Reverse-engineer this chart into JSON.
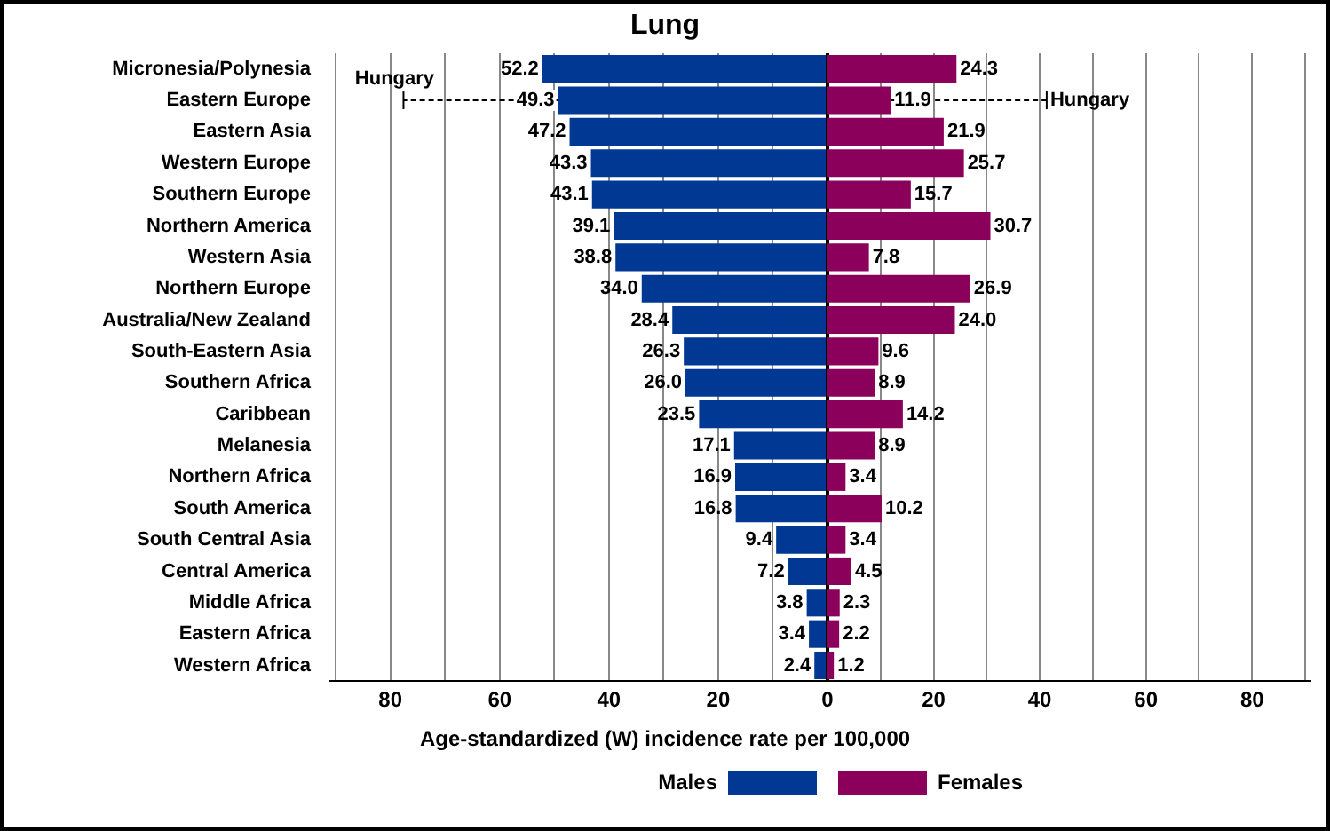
{
  "chart_data": [
    {
      "type": "bar",
      "orientation": "horizontal",
      "title": "Lung",
      "xlabel": "Age-standardized (W) incidence rate per 100,000",
      "categories": [
        "Micronesia/Polynesia",
        "Eastern Europe",
        "Eastern Asia",
        "Western Europe",
        "Southern Europe",
        "Northern America",
        "Western Asia",
        "Northern Europe",
        "Australia/New Zealand",
        "South-Eastern Asia",
        "Southern Africa",
        "Caribbean",
        "Melanesia",
        "Northern Africa",
        "South America",
        "South Central Asia",
        "Central America",
        "Middle Africa",
        "Eastern Africa",
        "Western Africa"
      ],
      "series": [
        {
          "name": "Males",
          "color": "#003893",
          "values": [
            52.2,
            49.3,
            47.2,
            43.3,
            43.1,
            39.1,
            38.8,
            34.0,
            28.4,
            26.3,
            26.0,
            23.5,
            17.1,
            16.9,
            16.8,
            9.4,
            7.2,
            3.8,
            3.4,
            2.4
          ],
          "value_labels": [
            "52.2",
            "49.3",
            "47.2",
            "43.3",
            "43.1",
            "39.1",
            "38.8",
            "34.0",
            "28.4",
            "26.3",
            "26.0",
            "23.5",
            "17.1",
            "16.9",
            "16.8",
            "9.4",
            "7.2",
            "3.8",
            "3.4",
            "2.4"
          ],
          "errors": [
            null,
            [
              49.3,
              77.6
            ],
            null,
            null,
            null,
            null,
            null,
            null,
            null,
            null,
            null,
            null,
            null,
            null,
            null,
            null,
            null,
            null,
            null,
            null
          ]
        }
      ],
      "xlim": [
        91,
        0
      ],
      "xticks": [
        {
          "value": 90,
          "label": null
        },
        80,
        {
          "value": 70,
          "label": null
        },
        60,
        {
          "value": 50,
          "label": null
        },
        40,
        {
          "value": 30,
          "label": null
        },
        20,
        {
          "value": 10,
          "label": null
        },
        0
      ],
      "annotations": [
        "Hungary"
      ],
      "grid": "x",
      "legend": "bottom"
    },
    {
      "type": "bar",
      "orientation": "horizontal",
      "categories": [
        "Micronesia/Polynesia",
        "Eastern Europe",
        "Eastern Asia",
        "Western Europe",
        "Southern Europe",
        "Northern America",
        "Western Asia",
        "Northern Europe",
        "Australia/New Zealand",
        "South-Eastern Asia",
        "Southern Africa",
        "Caribbean",
        "Melanesia",
        "Northern Africa",
        "South America",
        "South Central Asia",
        "Central America",
        "Middle Africa",
        "Eastern Africa",
        "Western Africa"
      ],
      "series": [
        {
          "name": "Females",
          "color": "#8b005a",
          "values": [
            24.3,
            11.9,
            21.9,
            25.7,
            15.7,
            30.7,
            7.8,
            26.9,
            24.0,
            9.6,
            8.9,
            14.2,
            8.9,
            3.4,
            10.2,
            3.4,
            4.5,
            2.3,
            2.2,
            1.2
          ],
          "value_labels": [
            "24.3",
            "11.9",
            "21.9",
            "25.7",
            "15.7",
            "30.7",
            "7.8",
            "26.9",
            "24.0",
            "9.6",
            "8.9",
            "14.2",
            "8.9",
            "3.4",
            "10.2",
            "3.4",
            "4.5",
            "2.3",
            "2.2",
            "1.2"
          ],
          "errors": [
            null,
            [
              11.9,
              41.3
            ],
            null,
            null,
            null,
            null,
            null,
            null,
            null,
            null,
            null,
            null,
            null,
            null,
            null,
            null,
            null,
            null,
            null,
            null
          ]
        }
      ],
      "xlim": [
        0,
        91
      ],
      "xticks": [
        {
          "value": 10,
          "label": null
        },
        20,
        {
          "value": 30,
          "label": null
        },
        40,
        {
          "value": 50,
          "label": null
        },
        60,
        {
          "value": 70,
          "label": null
        },
        80,
        {
          "value": 90,
          "label": null
        }
      ],
      "annotations": [
        "Hungary"
      ],
      "tick_labels": "x",
      "grid": "x",
      "legend": "bottom"
    }
  ]
}
